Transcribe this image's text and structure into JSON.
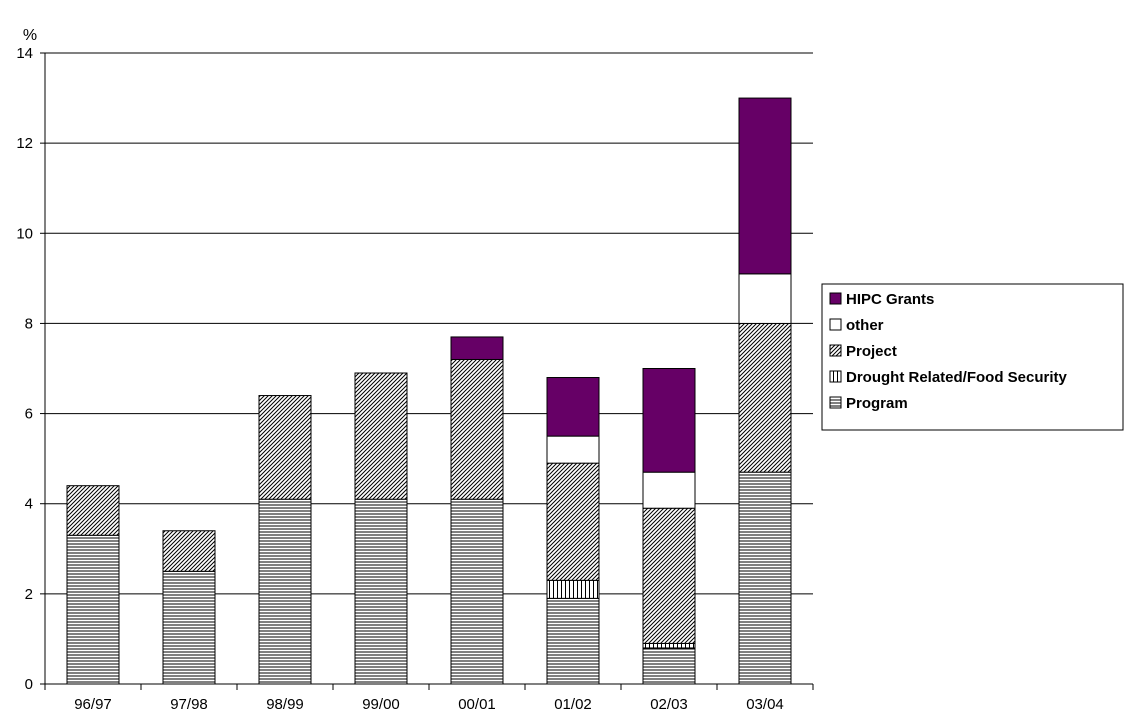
{
  "chart_data": {
    "type": "bar",
    "stacked": true,
    "ylabel": "%",
    "ylim": [
      0,
      14
    ],
    "yticks": [
      "0",
      "2",
      "4",
      "6",
      "8",
      "10",
      "12",
      "14"
    ],
    "grid": true,
    "legend_position": "right",
    "categories": [
      "96/97",
      "97/98",
      "98/99",
      "99/00",
      "00/01",
      "01/02",
      "02/03",
      "03/04"
    ],
    "series": [
      {
        "name": "Program",
        "pattern": "horizontal-lines",
        "color": "#000000",
        "values": [
          3.3,
          2.5,
          4.1,
          4.1,
          4.1,
          1.9,
          0.8,
          4.7
        ]
      },
      {
        "name": "Drought Related/Food Security",
        "pattern": "vertical-lines",
        "color": "#000000",
        "values": [
          0,
          0,
          0,
          0,
          0,
          0.4,
          0.1,
          0
        ]
      },
      {
        "name": "Project",
        "pattern": "diagonal-hatch",
        "color": "#000000",
        "values": [
          1.1,
          0.9,
          2.3,
          2.8,
          3.1,
          2.6,
          3.0,
          3.3
        ]
      },
      {
        "name": "other",
        "pattern": "solid",
        "color": "#ffffff",
        "values": [
          0,
          0,
          0,
          0,
          0,
          0.6,
          0.8,
          1.1
        ]
      },
      {
        "name": "HIPC Grants",
        "pattern": "solid",
        "color": "#660066",
        "values": [
          0,
          0,
          0,
          0,
          0.5,
          1.3,
          2.3,
          3.9
        ]
      }
    ],
    "legend_order": [
      "HIPC Grants",
      "other",
      "Project",
      "Drought Related/Food Security",
      "Program"
    ]
  }
}
